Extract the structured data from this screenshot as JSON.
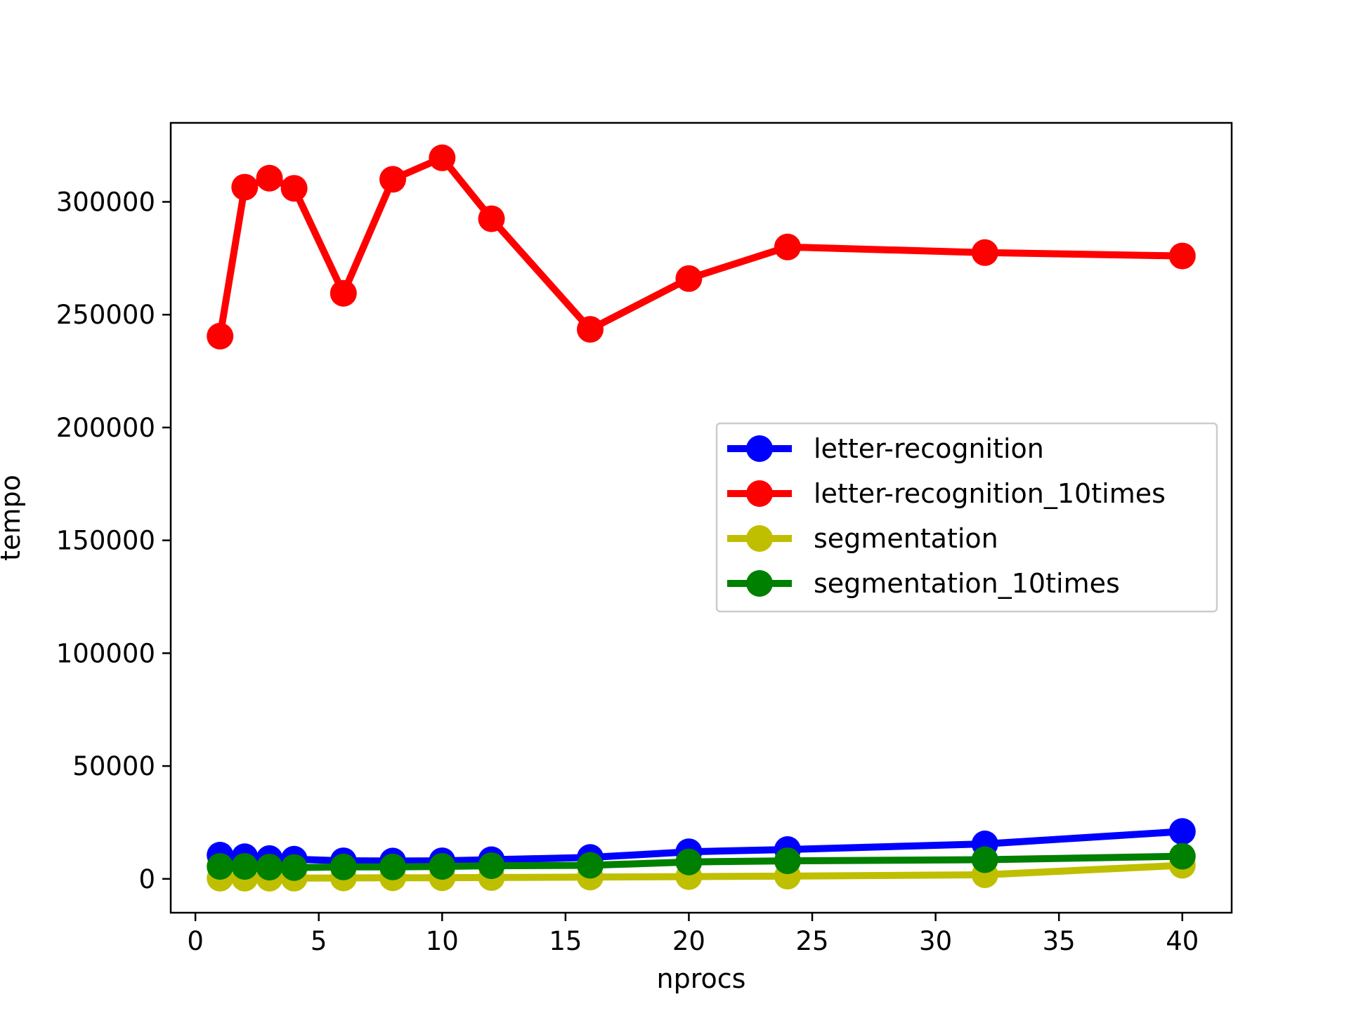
{
  "chart_data": {
    "type": "line",
    "title": "",
    "xlabel": "nprocs",
    "ylabel": "tempo",
    "xlim": [
      -1,
      42
    ],
    "ylim": [
      -15000,
      335000
    ],
    "xticks": [
      0,
      5,
      10,
      15,
      20,
      25,
      30,
      35,
      40
    ],
    "yticks": [
      0,
      50000,
      100000,
      150000,
      200000,
      250000,
      300000
    ],
    "grid": false,
    "legend_position": "center-right",
    "x": [
      1,
      2,
      3,
      4,
      6,
      8,
      10,
      12,
      16,
      20,
      24,
      32,
      40
    ],
    "series": [
      {
        "name": "letter-recognition",
        "color": "#0000ff",
        "values": [
          10500,
          9800,
          9000,
          8700,
          8000,
          7900,
          8000,
          8500,
          9500,
          12000,
          13000,
          15500,
          21000
        ]
      },
      {
        "name": "letter-recognition_10times",
        "color": "#ff0000",
        "values": [
          240500,
          306500,
          310500,
          306000,
          259500,
          310000,
          319500,
          292500,
          243500,
          266000,
          280000,
          277500,
          276000
        ]
      },
      {
        "name": "segmentation",
        "color": "#bfbf00",
        "values": [
          300,
          300,
          300,
          300,
          400,
          500,
          500,
          600,
          800,
          1000,
          1200,
          1800,
          6000
        ]
      },
      {
        "name": "segmentation_10times",
        "color": "#008000",
        "values": [
          5500,
          5500,
          5200,
          5000,
          5300,
          5300,
          5500,
          5800,
          6000,
          7500,
          8000,
          8500,
          10000
        ]
      }
    ]
  }
}
